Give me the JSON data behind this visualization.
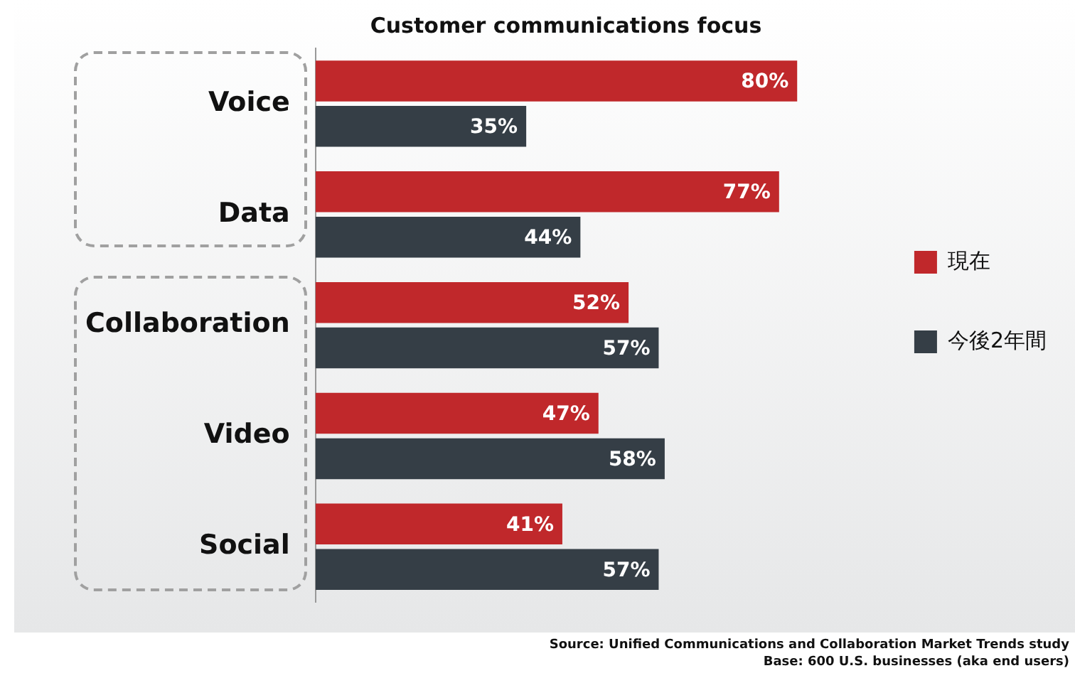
{
  "chart_data": {
    "type": "bar",
    "orientation": "horizontal",
    "title": "Customer communications focus",
    "categories": [
      "Voice",
      "Data",
      "Collaboration",
      "Video",
      "Social"
    ],
    "series": [
      {
        "name": "現在",
        "color": "#c0282b",
        "values": [
          80,
          77,
          52,
          47,
          41
        ],
        "value_labels": [
          "80%",
          "77%",
          "52%",
          "47%",
          "41%"
        ]
      },
      {
        "name": "今後2年間",
        "color": "#353e46",
        "values": [
          35,
          44,
          57,
          58,
          57
        ],
        "value_labels": [
          "35%",
          "44%",
          "57%",
          "58%",
          "57%"
        ]
      }
    ],
    "tick_labels": "y",
    "legend": "right",
    "annotations": [
      "Source: Unified Communications and Collaboration Market Trends study",
      "Base: 600 U.S. businesses (aka end users)"
    ]
  }
}
